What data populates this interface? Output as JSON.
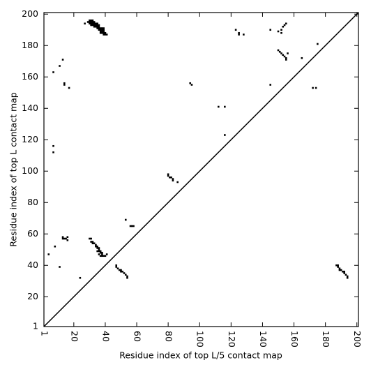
{
  "chart_data": {
    "type": "scatter",
    "xlabel": "Residue index of top L/5 contact map",
    "ylabel": "Residue index of top L contact map",
    "color": "#000000",
    "xlim": [
      1,
      201
    ],
    "ylim": [
      1,
      201
    ],
    "xticks": [
      1,
      20,
      40,
      60,
      80,
      100,
      120,
      140,
      160,
      180,
      200
    ],
    "yticks": [
      1,
      20,
      40,
      60,
      80,
      100,
      120,
      140,
      160,
      180,
      200
    ],
    "x": [
      30,
      31,
      32,
      29,
      30,
      31,
      32,
      33,
      30,
      31,
      32,
      33,
      34,
      35,
      31,
      32,
      33,
      34,
      35,
      36,
      33,
      34,
      35,
      36,
      35,
      36,
      37,
      38,
      39,
      36,
      37,
      38,
      39,
      37,
      38,
      39,
      37,
      38,
      39,
      40,
      39,
      40,
      41,
      27,
      123,
      125,
      125,
      128,
      145,
      150,
      152,
      153,
      154,
      155,
      152,
      150,
      151,
      152,
      153,
      154,
      155,
      155,
      156,
      165,
      175,
      7,
      11,
      13,
      14,
      14,
      17,
      94,
      95,
      145,
      172,
      174,
      112,
      116,
      116,
      7,
      7,
      80,
      80,
      81,
      82,
      83,
      83,
      86,
      53,
      56,
      57,
      58,
      13,
      13,
      14,
      15,
      16,
      16,
      8,
      4,
      11,
      24,
      30,
      31,
      31,
      32,
      32,
      33,
      34,
      34,
      35,
      35,
      36,
      36,
      36,
      37,
      37,
      38,
      38,
      39,
      37,
      38,
      40,
      41,
      35,
      36,
      47,
      47,
      48,
      49,
      50,
      50,
      51,
      52,
      53,
      54,
      54,
      187,
      188,
      188,
      189,
      189,
      190,
      191,
      192,
      192,
      193,
      194,
      194
    ],
    "y": [
      196,
      196,
      196,
      195,
      195,
      195,
      195,
      195,
      194,
      194,
      194,
      194,
      194,
      194,
      193,
      193,
      193,
      193,
      193,
      193,
      192,
      192,
      192,
      192,
      191,
      191,
      191,
      191,
      191,
      190,
      190,
      190,
      190,
      189,
      189,
      189,
      188,
      188,
      188,
      188,
      187,
      187,
      187,
      194,
      190,
      188,
      187,
      187,
      190,
      189,
      190,
      192,
      193,
      194,
      188,
      177,
      176,
      175,
      174,
      173,
      172,
      171,
      175,
      172,
      181,
      163,
      167,
      171,
      156,
      155,
      153,
      156,
      155,
      155,
      153,
      153,
      141,
      141,
      123,
      116,
      112,
      98,
      97,
      96,
      96,
      95,
      94,
      93,
      69,
      65,
      65,
      65,
      58,
      57,
      57,
      57,
      56,
      58,
      52,
      47,
      39,
      32,
      57,
      57,
      55,
      55,
      54,
      54,
      53,
      52,
      52,
      51,
      51,
      50,
      49,
      49,
      48,
      48,
      47,
      46,
      46,
      46,
      46,
      47,
      49,
      47,
      40,
      39,
      38,
      37,
      37,
      36,
      36,
      35,
      34,
      33,
      32,
      40,
      40,
      39,
      38,
      37,
      37,
      36,
      36,
      35,
      34,
      33,
      32
    ]
  }
}
